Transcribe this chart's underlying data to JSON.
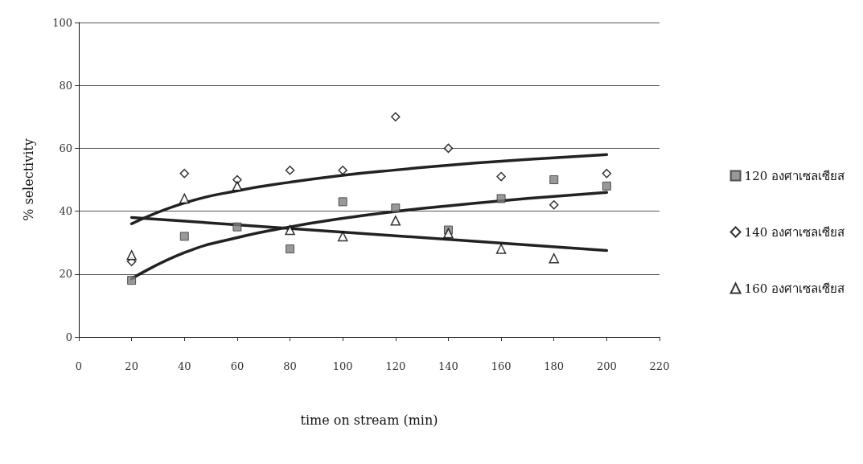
{
  "chart_data": {
    "type": "scatter",
    "xlabel": "time on stream (min)",
    "ylabel": "% selectivity",
    "x": [
      20,
      40,
      60,
      80,
      100,
      120,
      140,
      160,
      180,
      200
    ],
    "xlim": [
      0,
      220
    ],
    "xticks": [
      0,
      20,
      40,
      60,
      80,
      100,
      120,
      140,
      160,
      180,
      200,
      220
    ],
    "ylim": [
      0,
      100
    ],
    "yticks": [
      0,
      20,
      40,
      60,
      80,
      100
    ],
    "grid": "y",
    "legend": "right",
    "series": [
      {
        "name": "120 องศาเซลเซียส",
        "color": "#7f7f7f",
        "marker": "square",
        "values": [
          18,
          32,
          35,
          28,
          43,
          41,
          34,
          44,
          50,
          48
        ]
      },
      {
        "name": "140 องศาเซลเซียส",
        "color": "#000000",
        "marker": "diamond",
        "values": [
          24,
          52,
          50,
          53,
          53,
          70,
          60,
          51,
          42,
          52
        ]
      },
      {
        "name": "160 องศาเซลเซียส",
        "color": "#000000",
        "marker": "triangle",
        "values": [
          26,
          44,
          48,
          34,
          32,
          37,
          33,
          28,
          25,
          null
        ]
      },
      {
        "type": "line",
        "color": "#222222",
        "marker": "none",
        "x": [
          20,
          40,
          60,
          80,
          100,
          120,
          140,
          160,
          180,
          200
        ],
        "values": [
          18.5,
          26.8,
          31.6,
          35.0,
          37.7,
          39.9,
          41.7,
          43.3,
          44.7,
          46.0
        ]
      },
      {
        "type": "line",
        "color": "#222222",
        "marker": "none",
        "x": [
          20,
          40,
          60,
          80,
          100,
          120,
          140,
          160,
          180,
          200
        ],
        "values": [
          36,
          42.6,
          46.5,
          49.2,
          51.4,
          53.1,
          54.6,
          55.9,
          57.0,
          58.0
        ]
      },
      {
        "type": "line",
        "color": "#222222",
        "marker": "none",
        "x": [
          20,
          200
        ],
        "values": [
          38,
          27.5
        ]
      }
    ]
  }
}
